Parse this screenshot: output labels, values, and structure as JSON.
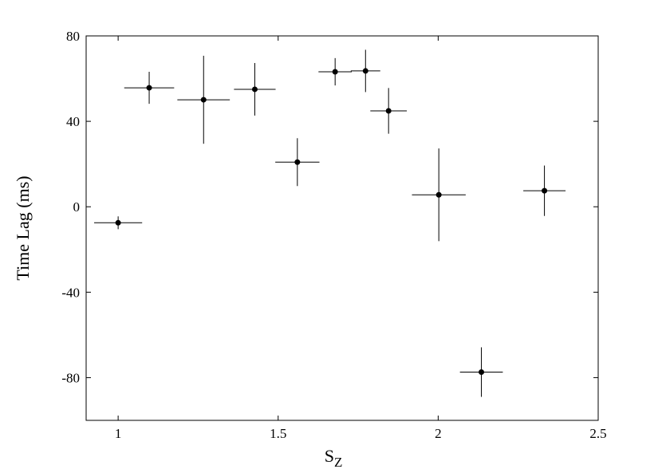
{
  "chart_data": {
    "type": "scatter",
    "xlabel": "S",
    "xlabel_sub": "Z",
    "ylabel": "Time Lag (ms)",
    "x": [
      1.0,
      1.097,
      1.267,
      1.427,
      1.56,
      1.678,
      1.773,
      1.845,
      2.002,
      2.135,
      2.332
    ],
    "values": [
      -7.5,
      55.7,
      50.1,
      55.0,
      20.9,
      63.2,
      63.6,
      44.9,
      5.6,
      -77.4,
      7.5
    ],
    "xerr": [
      0.075,
      0.078,
      0.082,
      0.065,
      0.069,
      0.052,
      0.046,
      0.057,
      0.084,
      0.067,
      0.066
    ],
    "yerr": [
      3,
      7.5,
      20.6,
      12.3,
      11.2,
      6.4,
      9.9,
      10.7,
      21.7,
      11.6,
      11.8
    ],
    "color": "#000000",
    "xlim": [
      0.9,
      2.5
    ],
    "xticks": [
      1,
      1.5,
      2,
      2.5
    ],
    "ylim": [
      -100,
      80
    ],
    "yticks": [
      -80,
      -40,
      0,
      40,
      80
    ]
  }
}
